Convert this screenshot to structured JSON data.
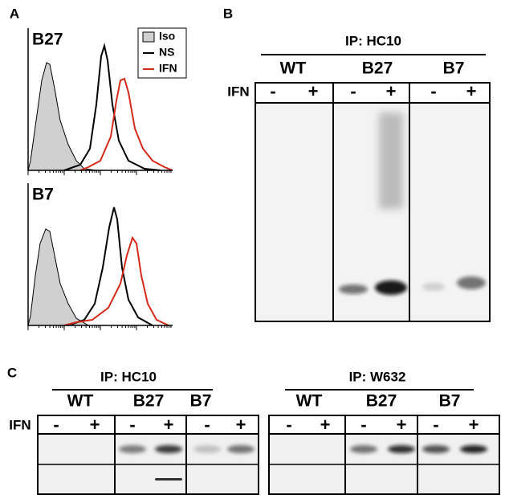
{
  "panel_a": {
    "label": "A",
    "plots": [
      {
        "title": "B27"
      },
      {
        "title": "B7"
      }
    ],
    "legend": [
      "Iso",
      "NS",
      "IFN"
    ]
  },
  "panel_b": {
    "label": "B",
    "ip": "IP: HC10",
    "groups": [
      "WT",
      "B27",
      "B7"
    ],
    "treatment": "IFN",
    "lanes": [
      "-",
      "+",
      "-",
      "+",
      "-",
      "+"
    ]
  },
  "panel_c": {
    "label": "C",
    "treatment": "IFN",
    "blots": [
      {
        "ip": "IP: HC10",
        "groups": [
          "WT",
          "B27",
          "B7"
        ],
        "lanes": [
          "-",
          "+",
          "-",
          "+",
          "-",
          "+"
        ]
      },
      {
        "ip": "IP: W632",
        "groups": [
          "WT",
          "B27",
          "B7"
        ],
        "lanes": [
          "-",
          "+",
          "-",
          "+",
          "-",
          "+"
        ]
      }
    ]
  }
}
